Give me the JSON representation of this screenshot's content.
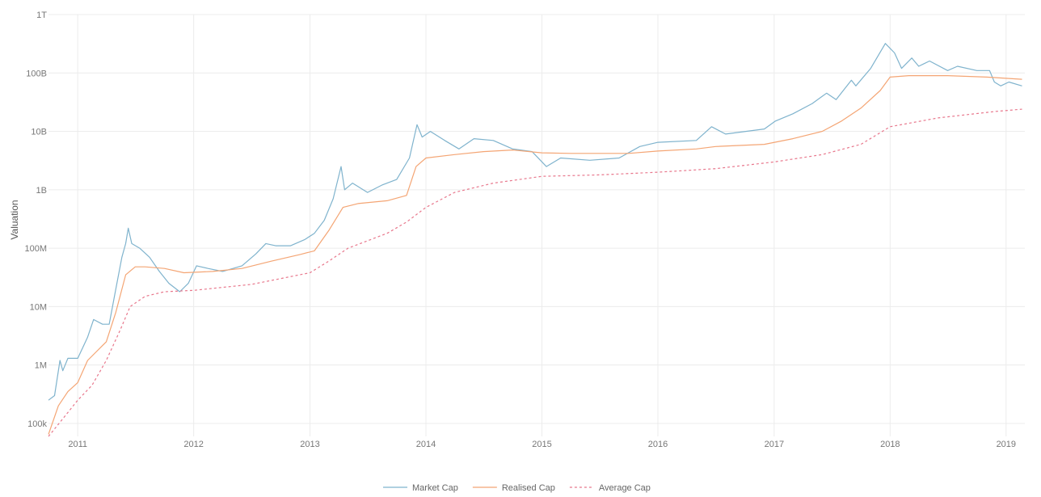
{
  "chart_data": {
    "type": "line",
    "title": "",
    "xlabel": "",
    "ylabel": "Valuation",
    "y_scale": "log",
    "ylim": [
      60000,
      1000000000000
    ],
    "xlim": [
      "2010-10-01",
      "2019-03-01"
    ],
    "y_ticks": [
      {
        "value": 100000,
        "label": "100k"
      },
      {
        "value": 1000000,
        "label": "1M"
      },
      {
        "value": 10000000,
        "label": "10M"
      },
      {
        "value": 100000000,
        "label": "100M"
      },
      {
        "value": 1000000000,
        "label": "1B"
      },
      {
        "value": 10000000000,
        "label": "10B"
      },
      {
        "value": 100000000000,
        "label": "100B"
      },
      {
        "value": 1000000000000,
        "label": "1T"
      }
    ],
    "x_ticks": [
      {
        "date": "2011-01-01",
        "label": "2011"
      },
      {
        "date": "2012-01-01",
        "label": "2012"
      },
      {
        "date": "2013-01-01",
        "label": "2013"
      },
      {
        "date": "2014-01-01",
        "label": "2014"
      },
      {
        "date": "2015-01-01",
        "label": "2015"
      },
      {
        "date": "2016-01-01",
        "label": "2016"
      },
      {
        "date": "2017-01-01",
        "label": "2017"
      },
      {
        "date": "2018-01-01",
        "label": "2018"
      },
      {
        "date": "2019-01-01",
        "label": "2019"
      }
    ],
    "grid": true,
    "legend_position": "bottom-center",
    "series": [
      {
        "name": "Market Cap",
        "color": "#7fb3cd",
        "style": "solid",
        "points": [
          [
            "2010-10-01",
            250000
          ],
          [
            "2010-10-20",
            300000
          ],
          [
            "2010-11-06",
            1200000
          ],
          [
            "2010-11-15",
            800000
          ],
          [
            "2010-12-01",
            1300000
          ],
          [
            "2011-01-01",
            1300000
          ],
          [
            "2011-02-01",
            3000000
          ],
          [
            "2011-02-20",
            6000000
          ],
          [
            "2011-03-20",
            5000000
          ],
          [
            "2011-04-10",
            5000000
          ],
          [
            "2011-05-01",
            20000000
          ],
          [
            "2011-05-20",
            70000000
          ],
          [
            "2011-06-01",
            120000000
          ],
          [
            "2011-06-09",
            220000000
          ],
          [
            "2011-06-20",
            120000000
          ],
          [
            "2011-07-15",
            100000000
          ],
          [
            "2011-08-15",
            70000000
          ],
          [
            "2011-09-15",
            40000000
          ],
          [
            "2011-10-15",
            25000000
          ],
          [
            "2011-11-18",
            18000000
          ],
          [
            "2011-12-15",
            25000000
          ],
          [
            "2012-01-10",
            50000000
          ],
          [
            "2012-02-15",
            45000000
          ],
          [
            "2012-04-01",
            40000000
          ],
          [
            "2012-06-01",
            50000000
          ],
          [
            "2012-07-15",
            80000000
          ],
          [
            "2012-08-15",
            120000000
          ],
          [
            "2012-09-15",
            110000000
          ],
          [
            "2012-11-01",
            110000000
          ],
          [
            "2012-12-15",
            140000000
          ],
          [
            "2013-01-15",
            180000000
          ],
          [
            "2013-02-15",
            300000000
          ],
          [
            "2013-03-15",
            700000000
          ],
          [
            "2013-04-09",
            2500000000
          ],
          [
            "2013-04-20",
            1000000000
          ],
          [
            "2013-05-15",
            1300000000
          ],
          [
            "2013-07-01",
            900000000
          ],
          [
            "2013-08-15",
            1200000000
          ],
          [
            "2013-10-01",
            1500000000
          ],
          [
            "2013-11-10",
            3500000000
          ],
          [
            "2013-12-04",
            13000000000
          ],
          [
            "2013-12-20",
            8000000000
          ],
          [
            "2014-01-15",
            10000000000
          ],
          [
            "2014-03-01",
            7000000000
          ],
          [
            "2014-04-15",
            5000000000
          ],
          [
            "2014-06-01",
            7500000000
          ],
          [
            "2014-08-01",
            7000000000
          ],
          [
            "2014-10-01",
            5000000000
          ],
          [
            "2014-12-01",
            4500000000
          ],
          [
            "2015-01-15",
            2500000000
          ],
          [
            "2015-03-01",
            3500000000
          ],
          [
            "2015-06-01",
            3200000000
          ],
          [
            "2015-09-01",
            3500000000
          ],
          [
            "2015-11-05",
            5500000000
          ],
          [
            "2016-01-01",
            6500000000
          ],
          [
            "2016-05-01",
            7000000000
          ],
          [
            "2016-06-18",
            12000000000
          ],
          [
            "2016-08-01",
            9000000000
          ],
          [
            "2016-12-01",
            11000000000
          ],
          [
            "2017-01-05",
            15000000000
          ],
          [
            "2017-03-01",
            20000000000
          ],
          [
            "2017-05-01",
            30000000000
          ],
          [
            "2017-06-15",
            45000000000
          ],
          [
            "2017-07-15",
            35000000000
          ],
          [
            "2017-09-01",
            75000000000
          ],
          [
            "2017-09-15",
            60000000000
          ],
          [
            "2017-11-01",
            120000000000
          ],
          [
            "2017-12-17",
            320000000000
          ],
          [
            "2018-01-15",
            220000000000
          ],
          [
            "2018-02-06",
            120000000000
          ],
          [
            "2018-03-10",
            180000000000
          ],
          [
            "2018-04-01",
            130000000000
          ],
          [
            "2018-05-05",
            160000000000
          ],
          [
            "2018-07-01",
            110000000000
          ],
          [
            "2018-08-01",
            130000000000
          ],
          [
            "2018-10-01",
            110000000000
          ],
          [
            "2018-11-10",
            110000000000
          ],
          [
            "2018-11-25",
            70000000000
          ],
          [
            "2018-12-15",
            60000000000
          ],
          [
            "2019-01-10",
            70000000000
          ],
          [
            "2019-02-20",
            60000000000
          ]
        ]
      },
      {
        "name": "Realised Cap",
        "color": "#f4a574",
        "style": "solid",
        "points": [
          [
            "2010-10-01",
            65000
          ],
          [
            "2010-11-01",
            200000
          ],
          [
            "2010-12-01",
            350000
          ],
          [
            "2011-01-01",
            500000
          ],
          [
            "2011-02-01",
            1200000
          ],
          [
            "2011-03-01",
            1700000
          ],
          [
            "2011-04-01",
            2500000
          ],
          [
            "2011-05-01",
            8000000
          ],
          [
            "2011-06-01",
            35000000
          ],
          [
            "2011-07-01",
            48000000
          ],
          [
            "2011-08-01",
            48000000
          ],
          [
            "2011-10-01",
            45000000
          ],
          [
            "2011-12-01",
            38000000
          ],
          [
            "2012-03-01",
            40000000
          ],
          [
            "2012-06-01",
            45000000
          ],
          [
            "2012-09-01",
            60000000
          ],
          [
            "2012-12-01",
            78000000
          ],
          [
            "2013-01-15",
            90000000
          ],
          [
            "2013-03-01",
            200000000
          ],
          [
            "2013-04-15",
            500000000
          ],
          [
            "2013-06-01",
            580000000
          ],
          [
            "2013-09-01",
            650000000
          ],
          [
            "2013-11-01",
            800000000
          ],
          [
            "2013-12-01",
            2500000000
          ],
          [
            "2014-01-01",
            3500000000
          ],
          [
            "2014-04-01",
            4000000000
          ],
          [
            "2014-07-01",
            4500000000
          ],
          [
            "2014-10-01",
            4800000000
          ],
          [
            "2015-01-01",
            4300000000
          ],
          [
            "2015-04-01",
            4200000000
          ],
          [
            "2015-10-01",
            4200000000
          ],
          [
            "2016-01-01",
            4600000000
          ],
          [
            "2016-05-01",
            5000000000
          ],
          [
            "2016-07-01",
            5500000000
          ],
          [
            "2016-12-01",
            6000000000
          ],
          [
            "2017-03-01",
            7500000000
          ],
          [
            "2017-06-01",
            10000000000
          ],
          [
            "2017-08-01",
            15000000000
          ],
          [
            "2017-10-01",
            25000000000
          ],
          [
            "2017-12-01",
            50000000000
          ],
          [
            "2018-01-01",
            85000000000
          ],
          [
            "2018-03-01",
            90000000000
          ],
          [
            "2018-07-01",
            90000000000
          ],
          [
            "2018-11-01",
            85000000000
          ],
          [
            "2019-02-20",
            78000000000
          ]
        ]
      },
      {
        "name": "Average Cap",
        "color": "#e8778c",
        "style": "dashed",
        "points": [
          [
            "2010-10-01",
            60000
          ],
          [
            "2010-11-15",
            120000
          ],
          [
            "2011-01-01",
            250000
          ],
          [
            "2011-02-15",
            450000
          ],
          [
            "2011-04-01",
            1200000
          ],
          [
            "2011-05-15",
            4000000
          ],
          [
            "2011-06-15",
            10000000
          ],
          [
            "2011-08-01",
            15000000
          ],
          [
            "2011-10-01",
            18000000
          ],
          [
            "2012-01-01",
            19000000
          ],
          [
            "2012-07-01",
            24000000
          ],
          [
            "2013-01-01",
            38000000
          ],
          [
            "2013-03-01",
            60000000
          ],
          [
            "2013-05-01",
            100000000
          ],
          [
            "2013-09-01",
            180000000
          ],
          [
            "2013-11-01",
            280000000
          ],
          [
            "2014-01-01",
            500000000
          ],
          [
            "2014-04-01",
            900000000
          ],
          [
            "2014-08-01",
            1300000000
          ],
          [
            "2015-01-01",
            1700000000
          ],
          [
            "2015-07-01",
            1800000000
          ],
          [
            "2016-01-01",
            2000000000
          ],
          [
            "2016-07-01",
            2300000000
          ],
          [
            "2017-01-01",
            3000000000
          ],
          [
            "2017-06-01",
            4000000000
          ],
          [
            "2017-10-01",
            6000000000
          ],
          [
            "2018-01-01",
            12000000000
          ],
          [
            "2018-06-01",
            17000000000
          ],
          [
            "2018-12-01",
            22000000000
          ],
          [
            "2019-02-20",
            24000000000
          ]
        ]
      }
    ]
  }
}
